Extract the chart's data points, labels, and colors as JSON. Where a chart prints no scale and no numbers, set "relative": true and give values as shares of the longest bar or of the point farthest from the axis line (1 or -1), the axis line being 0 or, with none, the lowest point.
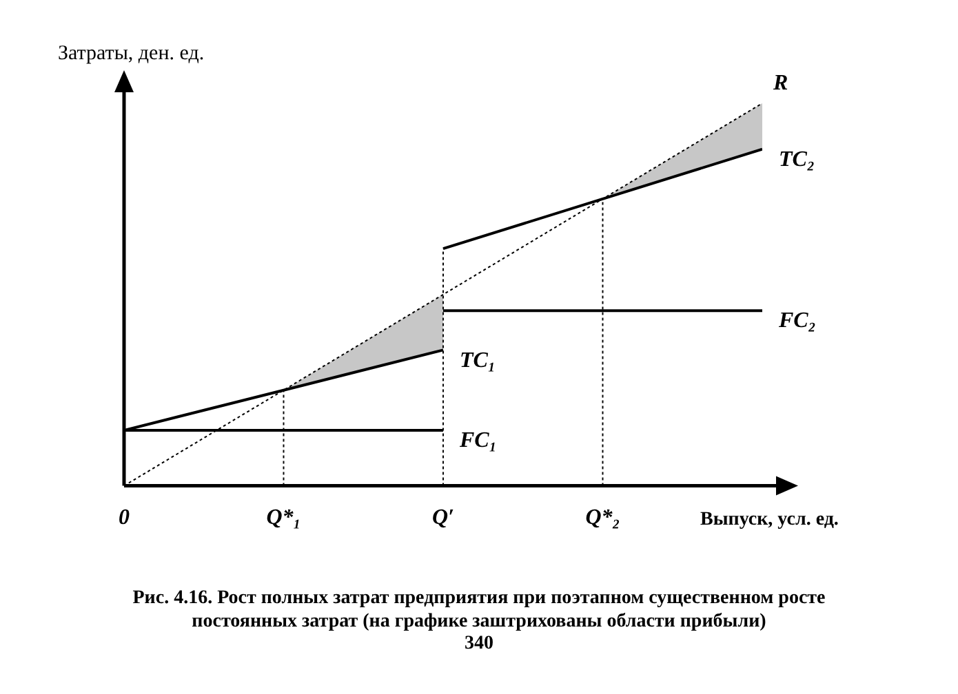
{
  "chart_data": {
    "type": "line",
    "relative": true,
    "xlabel": "Выпуск, усл. ед.",
    "ylabel": "Затраты, ден. ед.",
    "legend": false,
    "grid": false,
    "marker": "none",
    "categories": [
      "0",
      "Q*₁",
      "Q′",
      "Q*₂",
      null
    ],
    "series": [
      {
        "name": "R",
        "color": "#000000",
        "line_style": "dotted",
        "values": [
          0,
          0.25,
          0.5,
          0.75,
          1
        ]
      },
      {
        "name": "TC₁",
        "color": "#000000",
        "line_style": "solid",
        "values": [
          0.145,
          0.25,
          0.355,
          null,
          null
        ],
        "lower": [
          null,
          0.25,
          0.355,
          null,
          null
        ],
        "upper": [
          null,
          0.25,
          0.5,
          null,
          null
        ]
      },
      {
        "name": "FC₁",
        "color": "#000000",
        "line_style": "solid",
        "values": [
          0.145,
          0.145,
          0.145,
          null,
          null
        ]
      },
      {
        "name": "TC₂",
        "color": "#000000",
        "line_style": "solid",
        "values": [
          null,
          null,
          0.62,
          0.75,
          0.88
        ],
        "lower": [
          null,
          null,
          null,
          0.75,
          0.88
        ],
        "upper": [
          null,
          null,
          null,
          0.75,
          1
        ]
      },
      {
        "name": "FC₂",
        "color": "#000000",
        "line_style": "solid",
        "values": [
          null,
          null,
          0.458,
          0.458,
          0.458
        ]
      },
      {
        "color": "#000000",
        "line_style": "dotted",
        "x": [
          "Q*₁",
          "Q*₁"
        ],
        "values": [
          0,
          0.25
        ]
      },
      {
        "color": "#000000",
        "line_style": "dotted",
        "x": [
          "Q′",
          "Q′"
        ],
        "values": [
          0,
          0.62
        ]
      },
      {
        "color": "#000000",
        "line_style": "dotted",
        "x": [
          "Q*₂",
          "Q*₂"
        ],
        "values": [
          0,
          0.75
        ]
      }
    ],
    "annotations": [
      "Рис. 4.16. Рост полных затрат предприятия при поэтапном существенном росте постоянных затрат (на графике заштрихованы области прибыли)",
      "340"
    ]
  }
}
